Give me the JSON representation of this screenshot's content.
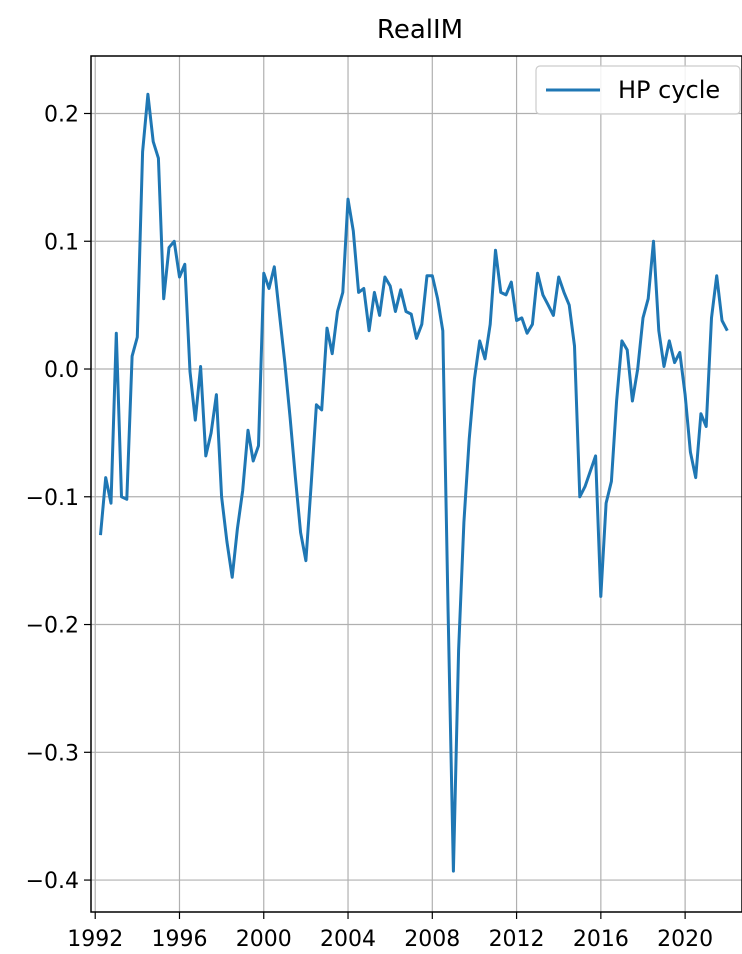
{
  "chart_data": {
    "type": "line",
    "title": "RealIM",
    "xlabel": "",
    "ylabel": "",
    "xlim": [
      1991.8,
      2022.7
    ],
    "ylim": [
      -0.425,
      0.245
    ],
    "grid": true,
    "legend_position": "top-right",
    "xticks": [
      1992,
      1996,
      2000,
      2004,
      2008,
      2012,
      2016,
      2020
    ],
    "xtick_labels": [
      "1992",
      "1996",
      "2000",
      "2004",
      "2008",
      "2012",
      "2016",
      "2020"
    ],
    "yticks": [
      0.2,
      0.1,
      0.0,
      -0.1,
      -0.2,
      -0.3,
      -0.4
    ],
    "ytick_labels": [
      "0.2",
      "0.1",
      "0.0",
      "−0.1",
      "−0.2",
      "−0.3",
      "−0.4"
    ],
    "series": [
      {
        "name": "HP cycle",
        "color": "#1f77b4",
        "x": [
          1992.25,
          1992.5,
          1992.75,
          1993.0,
          1993.25,
          1993.5,
          1993.75,
          1994.0,
          1994.25,
          1994.5,
          1994.75,
          1995.0,
          1995.25,
          1995.5,
          1995.75,
          1996.0,
          1996.25,
          1996.5,
          1996.75,
          1997.0,
          1997.25,
          1997.5,
          1997.75,
          1998.0,
          1998.25,
          1998.5,
          1998.75,
          1999.0,
          1999.25,
          1999.5,
          1999.75,
          2000.0,
          2000.25,
          2000.5,
          2000.75,
          2001.0,
          2001.25,
          2001.5,
          2001.75,
          2002.0,
          2002.25,
          2002.5,
          2002.75,
          2003.0,
          2003.25,
          2003.5,
          2003.75,
          2004.0,
          2004.25,
          2004.5,
          2004.75,
          2005.0,
          2005.25,
          2005.5,
          2005.75,
          2006.0,
          2006.25,
          2006.5,
          2006.75,
          2007.0,
          2007.25,
          2007.5,
          2007.75,
          2008.0,
          2008.25,
          2008.5,
          2008.75,
          2009.0,
          2009.25,
          2009.5,
          2009.75,
          2010.0,
          2010.25,
          2010.5,
          2010.75,
          2011.0,
          2011.25,
          2011.5,
          2011.75,
          2012.0,
          2012.25,
          2012.5,
          2012.75,
          2013.0,
          2013.25,
          2013.5,
          2013.75,
          2014.0,
          2014.25,
          2014.5,
          2014.75,
          2015.0,
          2015.25,
          2015.5,
          2015.75,
          2016.0,
          2016.25,
          2016.5,
          2016.75,
          2017.0,
          2017.25,
          2017.5,
          2017.75,
          2018.0,
          2018.25,
          2018.5,
          2018.75,
          2019.0,
          2019.25,
          2019.5,
          2019.75,
          2020.0,
          2020.25,
          2020.5,
          2020.75,
          2021.0,
          2021.25,
          2021.5,
          2021.75,
          2022.0
        ],
        "values": [
          -0.13,
          -0.085,
          -0.105,
          0.028,
          -0.1,
          -0.102,
          0.01,
          0.025,
          0.17,
          0.215,
          0.178,
          0.165,
          0.055,
          0.095,
          0.1,
          0.072,
          0.082,
          -0.002,
          -0.04,
          0.002,
          -0.068,
          -0.05,
          -0.02,
          -0.1,
          -0.135,
          -0.163,
          -0.125,
          -0.095,
          -0.048,
          -0.072,
          -0.06,
          0.075,
          0.063,
          0.08,
          0.042,
          0.005,
          -0.038,
          -0.085,
          -0.128,
          -0.15,
          -0.09,
          -0.028,
          -0.032,
          0.032,
          0.012,
          0.045,
          0.06,
          0.133,
          0.108,
          0.06,
          0.063,
          0.03,
          0.06,
          0.042,
          0.072,
          0.065,
          0.045,
          0.062,
          0.045,
          0.043,
          0.024,
          0.035,
          0.073,
          0.073,
          0.055,
          0.03,
          -0.19,
          -0.393,
          -0.22,
          -0.12,
          -0.055,
          -0.008,
          0.022,
          0.008,
          0.035,
          0.093,
          0.06,
          0.058,
          0.068,
          0.038,
          0.04,
          0.028,
          0.035,
          0.075,
          0.058,
          0.05,
          0.042,
          0.072,
          0.06,
          0.05,
          0.018,
          -0.1,
          -0.092,
          -0.08,
          -0.068,
          -0.178,
          -0.105,
          -0.088,
          -0.025,
          0.022,
          0.015,
          -0.025,
          0.0,
          0.04,
          0.055,
          0.1,
          0.03,
          0.002,
          0.022,
          0.005,
          0.013,
          -0.02,
          -0.065,
          -0.085,
          -0.035,
          -0.045,
          0.04,
          0.073,
          0.038,
          0.03
        ]
      }
    ]
  }
}
